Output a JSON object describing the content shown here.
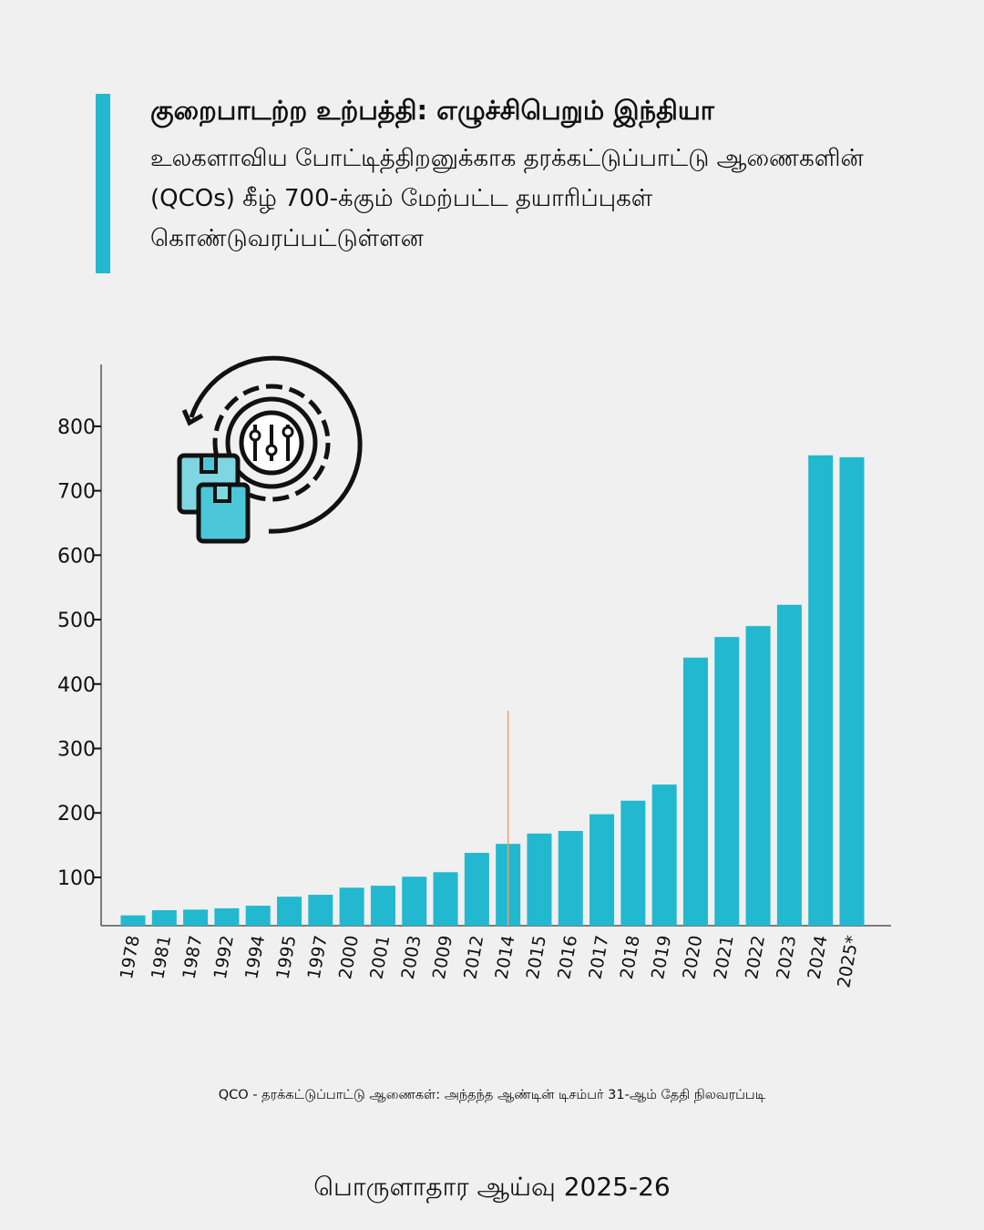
{
  "header": {
    "title": "குறைபாடற்ற உற்பத்தி: எழுச்சிபெறும் இந்தியா",
    "subtitle": "உலகளாவிய போட்டித்திறனுக்காக தரக்கட்டுப்பாட்டு ஆணைகளின் (QCOs) கீழ் 700-க்கும் மேற்பட்ட தயாரிப்புகள் கொண்டுவரப்பட்டுள்ளன"
  },
  "chart_data": {
    "type": "bar",
    "title": "குறைபாடற்ற உற்பத்தி: எழுச்சிபெறும் இந்தியா",
    "xlabel": "",
    "ylabel": "",
    "categories": [
      "1978",
      "1981",
      "1987",
      "1992",
      "1994",
      "1995",
      "1997",
      "2000",
      "2001",
      "2003",
      "2009",
      "2012",
      "2014",
      "2015",
      "2016",
      "2017",
      "2018",
      "2019",
      "2020",
      "2021",
      "2022",
      "2023",
      "2024",
      "2025*"
    ],
    "values": [
      41,
      49,
      50,
      52,
      56,
      70,
      73,
      84,
      87,
      101,
      108,
      138,
      152,
      168,
      172,
      198,
      219,
      244,
      441,
      473,
      490,
      523,
      755,
      752
    ],
    "yticks": [
      100,
      200,
      300,
      400,
      500,
      600,
      700,
      800
    ],
    "ylim": [
      25,
      896
    ],
    "grid": false,
    "bar_color": "#22b8cf",
    "marker_line": {
      "at_category": "2014",
      "color": "#e8a06a"
    }
  },
  "footer": {
    "note": "QCO - தரக்கட்டுப்பாட்டு ஆணைகள்: அந்தந்த ஆண்டின் டிசம்பர் 31-ஆம் தேதி நிலவரப்படி",
    "source": "பொருளாதார ஆய்வு 2025-26"
  }
}
